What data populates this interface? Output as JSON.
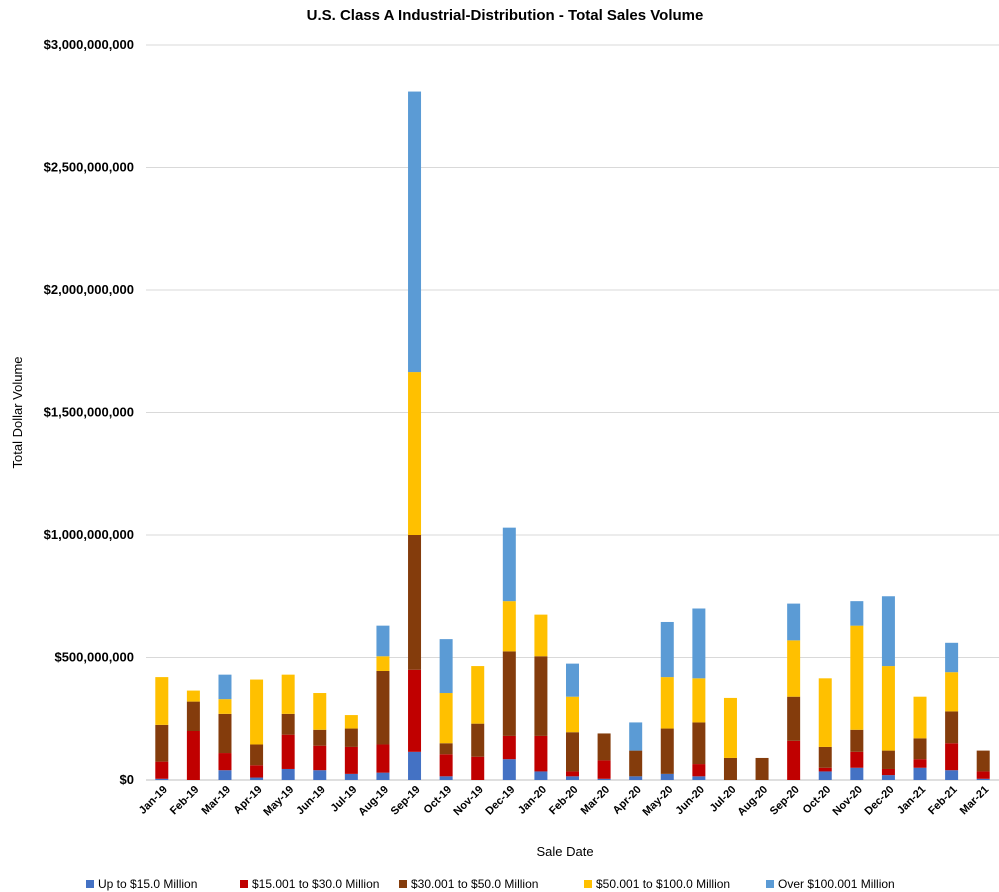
{
  "chart_data": {
    "type": "bar",
    "stacked": true,
    "title": "U.S. Class A Industrial-Distribution - Total Sales Volume",
    "xlabel": "Sale Date",
    "ylabel": "Total Dollar Volume",
    "ylim": [
      0,
      3000000000
    ],
    "yticks": [
      0,
      500000000,
      1000000000,
      1500000000,
      2000000000,
      2500000000,
      3000000000
    ],
    "ytick_labels": [
      "$0",
      "$500,000,000",
      "$1,000,000,000",
      "$1,500,000,000",
      "$2,000,000,000",
      "$2,500,000,000",
      "$3,000,000,000"
    ],
    "grid": true,
    "legend_position": "bottom",
    "categories": [
      "Jan-19",
      "Feb-19",
      "Mar-19",
      "Apr-19",
      "May-19",
      "Jun-19",
      "Jul-19",
      "Aug-19",
      "Sep-19",
      "Oct-19",
      "Nov-19",
      "Dec-19",
      "Jan-20",
      "Feb-20",
      "Mar-20",
      "Apr-20",
      "May-20",
      "Jun-20",
      "Jul-20",
      "Aug-20",
      "Sep-20",
      "Oct-20",
      "Nov-20",
      "Dec-20",
      "Jan-21",
      "Feb-21",
      "Mar-21"
    ],
    "series": [
      {
        "name": "Up to $15.0 Million",
        "color": "#4472C4",
        "values": [
          5000000,
          0,
          40000000,
          10000000,
          45000000,
          40000000,
          25000000,
          30000000,
          115000000,
          15000000,
          0,
          85000000,
          35000000,
          15000000,
          5000000,
          15000000,
          25000000,
          15000000,
          0,
          0,
          0,
          35000000,
          50000000,
          20000000,
          50000000,
          40000000,
          5000000
        ]
      },
      {
        "name": "$15.001 to $30.0 Million",
        "color": "#C00000",
        "values": [
          70000000,
          200000000,
          70000000,
          50000000,
          140000000,
          100000000,
          110000000,
          115000000,
          335000000,
          90000000,
          95000000,
          95000000,
          145000000,
          20000000,
          75000000,
          0,
          0,
          50000000,
          0,
          0,
          160000000,
          15000000,
          65000000,
          25000000,
          35000000,
          110000000,
          30000000
        ]
      },
      {
        "name": "$30.001 to $50.0 Million",
        "color": "#843C0C",
        "values": [
          150000000,
          120000000,
          160000000,
          85000000,
          85000000,
          65000000,
          75000000,
          300000000,
          550000000,
          45000000,
          135000000,
          345000000,
          325000000,
          160000000,
          110000000,
          105000000,
          185000000,
          170000000,
          90000000,
          90000000,
          180000000,
          85000000,
          90000000,
          75000000,
          85000000,
          130000000,
          85000000
        ]
      },
      {
        "name": "$50.001 to $100.0 Million",
        "color": "#FFC000",
        "values": [
          195000000,
          45000000,
          60000000,
          265000000,
          160000000,
          150000000,
          55000000,
          60000000,
          665000000,
          205000000,
          235000000,
          205000000,
          170000000,
          145000000,
          0,
          0,
          210000000,
          180000000,
          245000000,
          0,
          230000000,
          280000000,
          425000000,
          345000000,
          170000000,
          160000000,
          0
        ]
      },
      {
        "name": "Over $100.001 Million",
        "color": "#5B9BD5",
        "values": [
          0,
          0,
          100000000,
          0,
          0,
          0,
          0,
          125000000,
          1145000000,
          220000000,
          0,
          300000000,
          0,
          135000000,
          0,
          115000000,
          225000000,
          285000000,
          0,
          0,
          150000000,
          0,
          100000000,
          285000000,
          0,
          120000000,
          0
        ]
      }
    ]
  }
}
